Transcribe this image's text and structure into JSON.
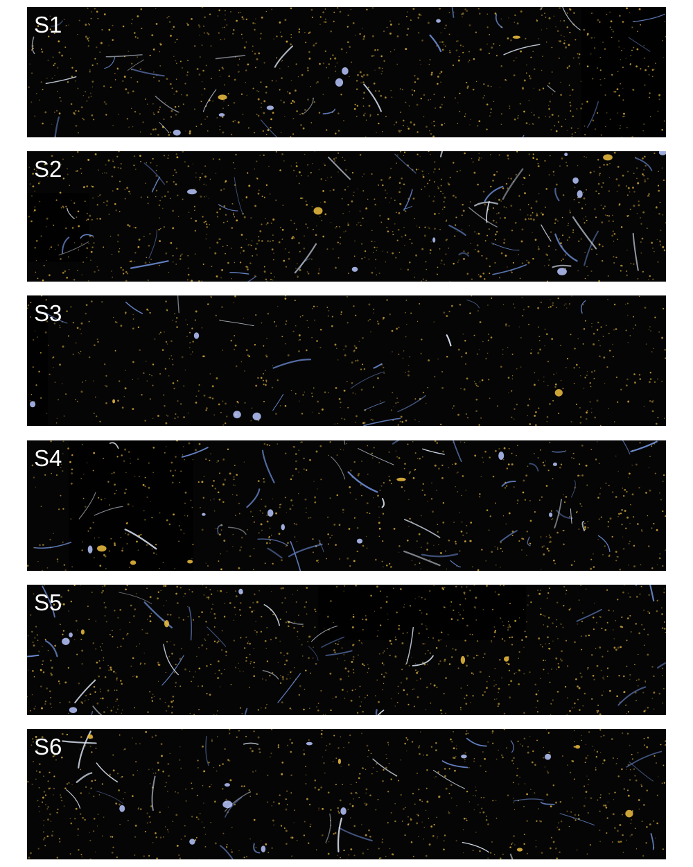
{
  "figure": {
    "panels": [
      {
        "label": "S1"
      },
      {
        "label": "S2"
      },
      {
        "label": "S3"
      },
      {
        "label": "S4"
      },
      {
        "label": "S5"
      },
      {
        "label": "S6"
      }
    ]
  },
  "colors": {
    "background": "#ffffff",
    "panel_background": "#050505",
    "particle_gold": "#c9a23a",
    "fiber_blue": "#6f8fd8",
    "fiber_white": "#dfe8f5",
    "label_text": "#ffffff"
  }
}
